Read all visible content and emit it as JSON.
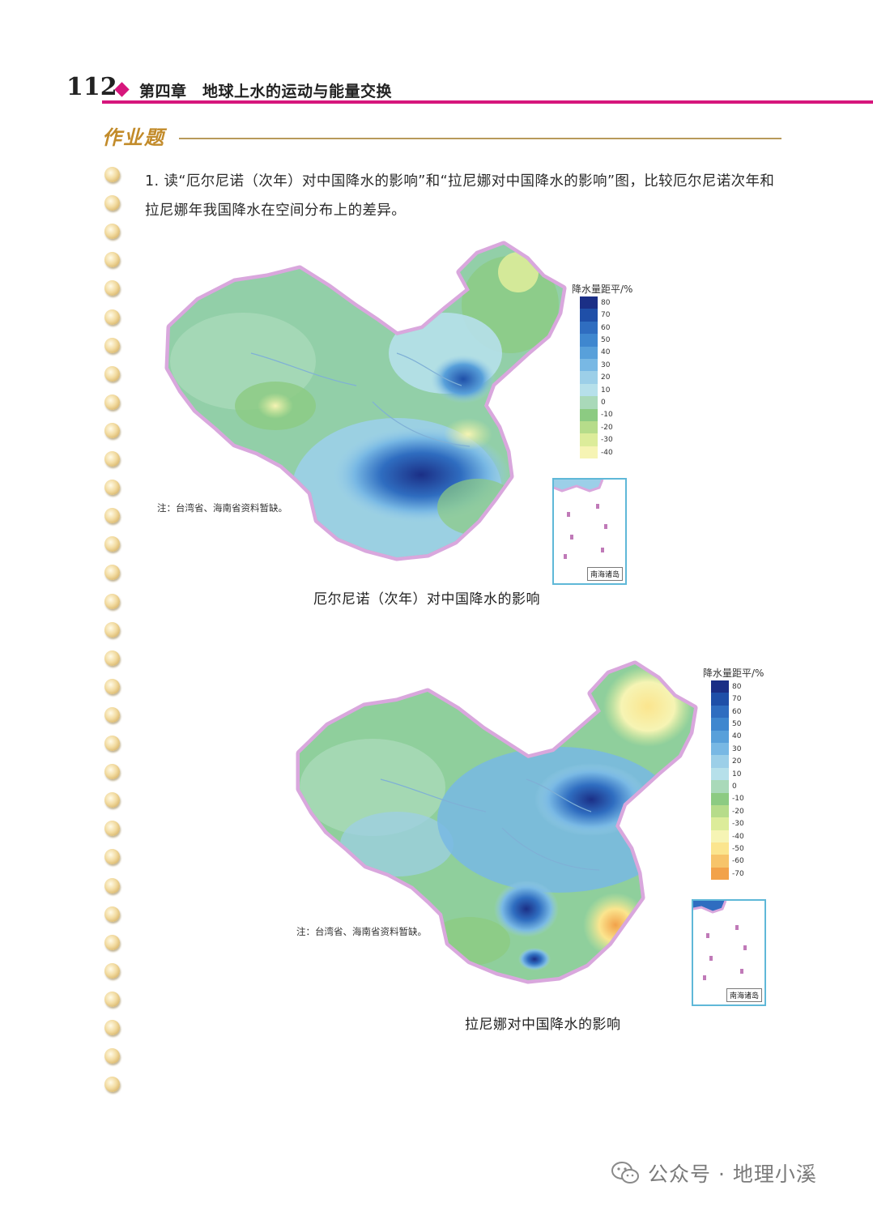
{
  "header": {
    "page_number": "112",
    "chapter_title": "第四章　地球上水的运动与能量交换"
  },
  "section": {
    "title": "作业题"
  },
  "question": {
    "text": "1. 读“厄尔尼诺（次年）对中国降水的影响”和“拉尼娜对中国降水的影响”图，比较厄尔尼诺次年和拉尼娜年我国降水在空间分布上的差异。"
  },
  "map1": {
    "caption": "厄尔尼诺（次年）对中国降水的影响",
    "note": "注：台湾省、海南省资料暂缺。",
    "legend_title": "降水量距平/%",
    "legend_ticks": [
      "80",
      "70",
      "60",
      "50",
      "40",
      "30",
      "20",
      "10",
      "0",
      "-10",
      "-20",
      "-30",
      "-40"
    ],
    "legend_colors": [
      "#1b2f86",
      "#1f4fa8",
      "#2f6dc0",
      "#3f87cf",
      "#58a0da",
      "#78b8e4",
      "#9ccfe8",
      "#b6e0ea",
      "#a9d9b9",
      "#8ccb82",
      "#b6dc8a",
      "#dcec9a",
      "#f6f4b4"
    ],
    "inset_label": "南海诸岛"
  },
  "map2": {
    "caption": "拉尼娜对中国降水的影响",
    "note": "注：台湾省、海南省资料暂缺。",
    "legend_title": "降水量距平/%",
    "legend_ticks": [
      "80",
      "70",
      "60",
      "50",
      "40",
      "30",
      "20",
      "10",
      "0",
      "-10",
      "-20",
      "-30",
      "-40",
      "-50",
      "-60",
      "-70"
    ],
    "legend_colors": [
      "#1b2f86",
      "#1f4fa8",
      "#2f6dc0",
      "#3f87cf",
      "#58a0da",
      "#78b8e4",
      "#9ccfe8",
      "#b6e0ea",
      "#a9d9b9",
      "#8ccb82",
      "#b6dc8a",
      "#dcec9a",
      "#f6f4b4",
      "#fbe58e",
      "#f7c46a",
      "#f2a24a"
    ],
    "inset_label": "南海诸岛"
  },
  "watermark": {
    "text": "公众号 · 地理小溪"
  }
}
